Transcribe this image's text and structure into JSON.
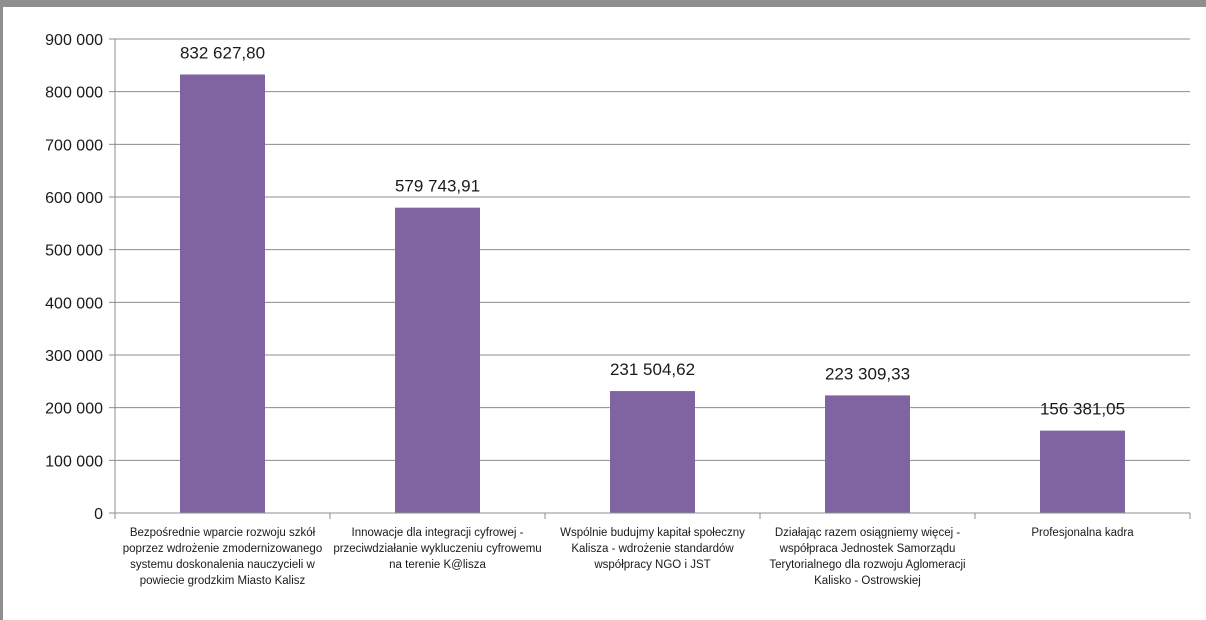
{
  "chart_data": {
    "type": "bar",
    "categories": [
      "Bezpośrednie wparcie rozwoju szkół poprzez wdrożenie zmodernizowanego systemu doskonalenia nauczycieli w powiecie grodzkim Miasto Kalisz",
      "Innowacje dla integracji cyfrowej - przeciwdziałanie wykluczeniu cyfrowemu na terenie K@lisza",
      "Wspólnie budujmy kapitał społeczny Kalisza - wdrożenie standardów współpracy NGO i JST",
      "Działając razem osiągniemy więcej - współpraca Jednostek Samorządu Terytorialnego dla rozwoju Aglomeracji Kalisko - Ostrowskiej",
      "Profesjonalna kadra"
    ],
    "values": [
      832627.8,
      579743.91,
      231504.62,
      223309.33,
      156381.05
    ],
    "data_labels": [
      "832 627,80",
      "579 743,91",
      "231 504,62",
      "223 309,33",
      "156 381,05"
    ],
    "yticks": [
      0,
      100000,
      200000,
      300000,
      400000,
      500000,
      600000,
      700000,
      800000,
      900000
    ],
    "ytick_labels": [
      "0",
      "100 000",
      "200 000",
      "300 000",
      "400 000",
      "500 000",
      "600 000",
      "700 000",
      "800 000",
      "900 000"
    ],
    "ylim": [
      0,
      900000
    ],
    "grid": true,
    "legend": "none",
    "title": "",
    "xlabel": "",
    "ylabel": "",
    "bar_color": "#8064a2",
    "grid_color": "#8c8c8c"
  }
}
